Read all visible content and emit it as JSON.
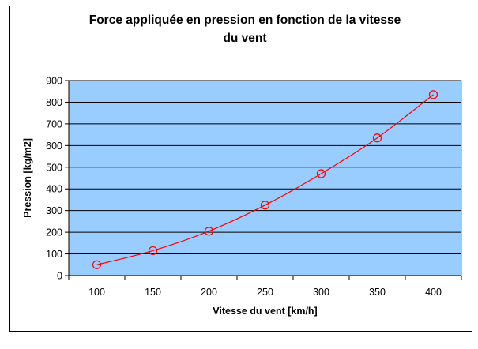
{
  "chart_data": {
    "type": "line",
    "title_line1": "Force appliquée en pression en fonction de la vitesse",
    "title_line2": "du vent",
    "xlabel": "Vitesse du vent [km/h]",
    "ylabel": "Pression [kg/m2]",
    "categories": [
      "100",
      "150",
      "200",
      "250",
      "300",
      "350",
      "400"
    ],
    "series": [
      {
        "values": [
          50,
          115,
          205,
          325,
          470,
          635,
          835
        ]
      }
    ],
    "ylim": [
      0,
      900
    ],
    "yticks": [
      0,
      100,
      200,
      300,
      400,
      500,
      600,
      700,
      800,
      900
    ],
    "grid": true,
    "legend": "none",
    "colors": {
      "plot_background": "#99CCFF",
      "series_line": "#FF0000",
      "grid": "#000000"
    }
  }
}
